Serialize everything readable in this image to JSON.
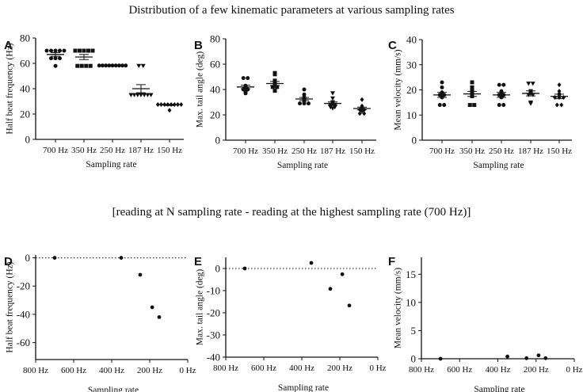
{
  "title": "Distribution of a few kinematic parameters at various sampling rates",
  "subtitle": "[reading at N sampling rate - reading at the highest sampling rate (700 Hz)]",
  "chart_data": [
    {
      "panel": "A",
      "type": "scatter",
      "xlabel": "Sampling rate",
      "ylabel": "Half beat frequency (Hz)",
      "ylim": [
        0,
        80
      ],
      "yticks": [
        0,
        20,
        40,
        60,
        80
      ],
      "categories": [
        "700 Hz",
        "350 Hz",
        "250 Hz",
        "187 Hz",
        "150 Hz"
      ],
      "groups": [
        [
          70,
          70,
          70,
          70,
          70,
          64,
          64,
          64,
          58
        ],
        [
          70,
          70,
          70,
          70,
          70,
          58,
          58,
          58,
          58
        ],
        [
          58.3,
          58.3,
          58.3,
          58.3,
          58.3,
          58.3,
          58.3,
          58.3,
          58.3
        ],
        [
          58,
          58,
          35,
          35,
          35,
          35,
          35,
          35,
          35
        ],
        [
          27.5,
          27.5,
          27.5,
          27.5,
          27.5,
          27.5,
          27.5,
          27.5,
          23
        ]
      ],
      "mean": [
        67,
        65,
        58.3,
        40,
        27.2
      ],
      "sem": [
        1.5,
        2,
        0.1,
        3.2,
        0.5
      ]
    },
    {
      "panel": "B",
      "type": "scatter",
      "xlabel": "Sampling rate",
      "ylabel": "Max. tail angle (deg)",
      "ylim": [
        0,
        80
      ],
      "yticks": [
        0,
        20,
        40,
        60,
        80
      ],
      "categories": [
        "700 Hz",
        "350 Hz",
        "250 Hz",
        "187 Hz",
        "150 Hz"
      ],
      "groups": [
        [
          49,
          49,
          43,
          42,
          41,
          40,
          40,
          38,
          37
        ],
        [
          53,
          52,
          47,
          45,
          44,
          43,
          42,
          42,
          39
        ],
        [
          40,
          36,
          34,
          33,
          32,
          30,
          29,
          29,
          29
        ],
        [
          37,
          33,
          30,
          29,
          28,
          28,
          26,
          26,
          25
        ],
        [
          32,
          27,
          26,
          25,
          24,
          24,
          23,
          21,
          21
        ]
      ],
      "mean": [
        42,
        44.7,
        32.5,
        29,
        25
      ],
      "sem": [
        1.4,
        1.6,
        1.2,
        1.2,
        1.1
      ]
    },
    {
      "panel": "C",
      "type": "scatter",
      "xlabel": "Sampling rate",
      "ylabel": "Mean velocity (mm/s)",
      "ylim": [
        0,
        40
      ],
      "yticks": [
        0,
        10,
        20,
        30,
        40
      ],
      "categories": [
        "700 Hz",
        "350 Hz",
        "250 Hz",
        "187 Hz",
        "150 Hz"
      ],
      "groups": [
        [
          23,
          21,
          19,
          18.5,
          18,
          18,
          17,
          14,
          14
        ],
        [
          23,
          21,
          19.5,
          19,
          18.5,
          18,
          17.5,
          14,
          14
        ],
        [
          22,
          22,
          19.5,
          19,
          18,
          18,
          17,
          14,
          14
        ],
        [
          22.5,
          22.5,
          19.5,
          19,
          18.5,
          18,
          18,
          15,
          14.5
        ],
        [
          22,
          19.5,
          18.5,
          18,
          17,
          17,
          17,
          14,
          14
        ]
      ],
      "mean": [
        18,
        18.4,
        18,
        18.6,
        17.4
      ],
      "sem": [
        1,
        1,
        1,
        1,
        0.9
      ]
    },
    {
      "panel": "D",
      "type": "scatter",
      "xlabel": "Sampling rate",
      "ylabel": "Half beat frequency (Hz)",
      "xlim": [
        800,
        0
      ],
      "ylim": [
        -72,
        2
      ],
      "yticks": [
        0,
        -20,
        -40,
        -60
      ],
      "xticks": [
        800,
        600,
        400,
        200,
        0
      ],
      "xtick_labels": [
        "800 Hz",
        "600 Hz",
        "400 Hz",
        "200 Hz",
        "0 Hz"
      ],
      "x": [
        700,
        350,
        250,
        187,
        150
      ],
      "y": [
        0,
        0,
        -12,
        -35,
        -42
      ]
    },
    {
      "panel": "E",
      "type": "scatter",
      "xlabel": "Sampling rate",
      "ylabel": "Max. tail angle (deg)",
      "xlim": [
        800,
        0
      ],
      "ylim": [
        -40,
        5
      ],
      "yticks": [
        0,
        -10,
        -20,
        -30,
        -40
      ],
      "xticks": [
        800,
        600,
        400,
        200,
        0
      ],
      "xtick_labels": [
        "800 Hz",
        "600 Hz",
        "400 Hz",
        "200 Hz",
        "0 Hz"
      ],
      "x": [
        700,
        350,
        250,
        187,
        150
      ],
      "y": [
        0,
        2.5,
        -9.2,
        -2.6,
        -16.7
      ]
    },
    {
      "panel": "F",
      "type": "scatter",
      "xlabel": "Sampling rate",
      "ylabel": "Mean velocity (mm/s)",
      "xlim": [
        800,
        0
      ],
      "ylim": [
        0,
        18
      ],
      "yticks": [
        0,
        5,
        10,
        15
      ],
      "xticks": [
        800,
        600,
        400,
        200,
        0
      ],
      "xtick_labels": [
        "800 Hz",
        "600 Hz",
        "400 Hz",
        "200 Hz",
        "0 Hz"
      ],
      "x": [
        700,
        350,
        250,
        187,
        150
      ],
      "y": [
        0,
        0.4,
        0.1,
        0.6,
        0.1
      ]
    }
  ]
}
